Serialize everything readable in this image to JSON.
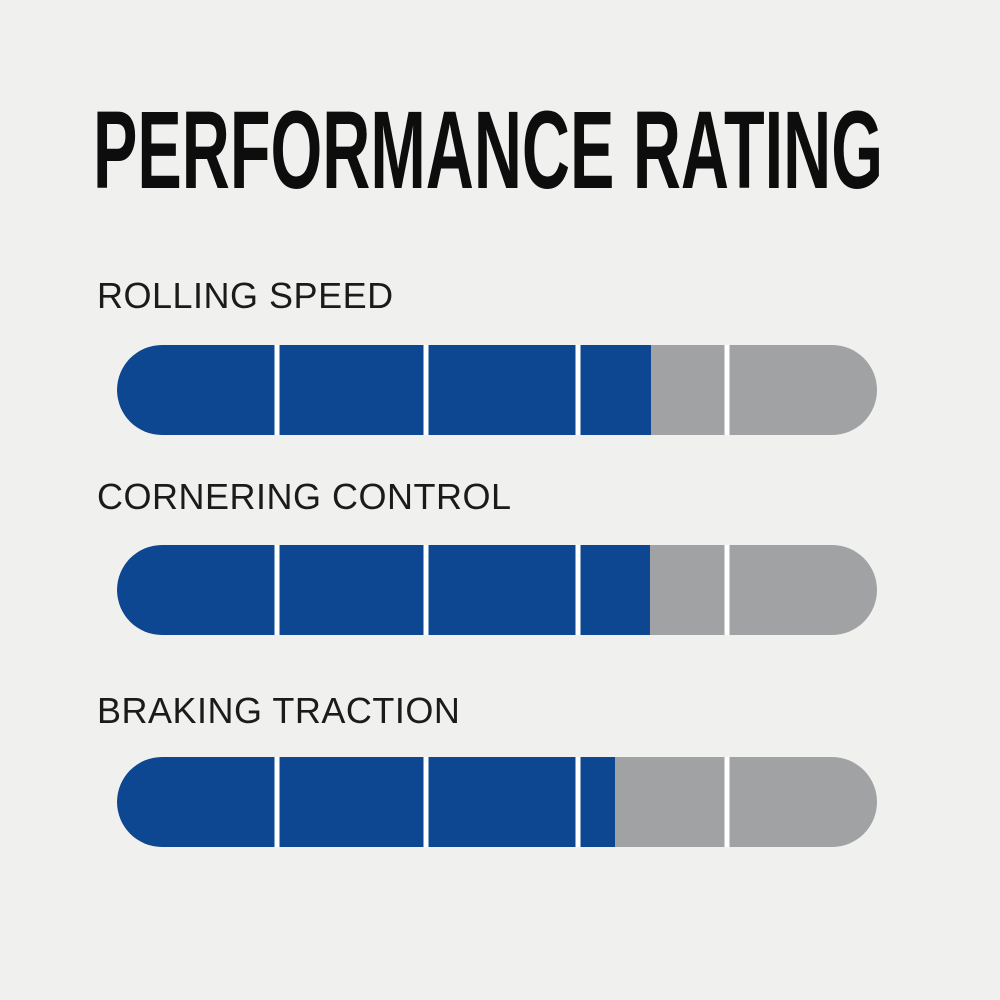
{
  "title": "PERFORMANCE RATING",
  "colors": {
    "background": "#f0f0ee",
    "bar_fill": "#0e4791",
    "bar_track": "#a0a2a4",
    "divider": "#ffffff",
    "title_text": "#0d0d0d",
    "label_text": "#1b1b1b"
  },
  "chart_data": {
    "type": "bar",
    "title": "PERFORMANCE RATING",
    "orientation": "horizontal",
    "categories": [
      "ROLLING SPEED",
      "CORNERING CONTROL",
      "BRAKING TRACTION"
    ],
    "values": [
      3.5,
      3.5,
      3.25
    ],
    "value_max": 5,
    "segments_per_bar": 5,
    "fill_percents": [
      70.3,
      70.1,
      65.5
    ],
    "legend": "none",
    "grid": "off"
  }
}
